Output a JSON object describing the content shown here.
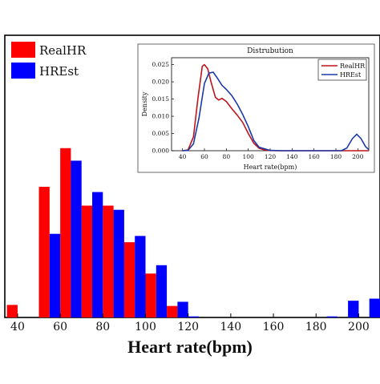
{
  "chart_data": [
    {
      "type": "bar",
      "xlabel": "Heart rate(bpm)",
      "x_ticks": [
        40,
        60,
        80,
        100,
        120,
        140,
        160,
        180,
        200
      ],
      "xlim": [
        34,
        210
      ],
      "ylim": [
        0,
        0.027
      ],
      "legend_placement": "top-left",
      "bin_width": 5,
      "series": [
        {
          "name": "RealHR",
          "color": "#ff0000",
          "values": [
            [
              40,
              0.0012
            ],
            [
              55,
              0.0125
            ],
            [
              65,
              0.0162
            ],
            [
              75,
              0.0107
            ],
            [
              85,
              0.0107
            ],
            [
              95,
              0.0072
            ],
            [
              105,
              0.0042
            ],
            [
              115,
              0.0011
            ],
            [
              120,
              0.0002
            ]
          ]
        },
        {
          "name": "HREst",
          "color": "#0000ff",
          "values": [
            [
              55,
              0.008
            ],
            [
              65,
              0.015
            ],
            [
              75,
              0.012
            ],
            [
              85,
              0.0103
            ],
            [
              95,
              0.0078
            ],
            [
              105,
              0.005
            ],
            [
              115,
              0.0015
            ],
            [
              120,
              0.0001
            ],
            [
              185,
              0.0001
            ],
            [
              195,
              0.0016
            ],
            [
              205,
              0.0018
            ]
          ]
        }
      ]
    },
    {
      "type": "line",
      "title": "Distrubution",
      "xlabel": "Heart rate(bpm)",
      "ylabel": "Density",
      "x_ticks": [
        40,
        60,
        80,
        100,
        120,
        140,
        160,
        180,
        200
      ],
      "y_ticks": [
        "0.000",
        "0.005",
        "0.010",
        "0.015",
        "0.020",
        "0.025"
      ],
      "xlim": [
        30,
        210
      ],
      "ylim": [
        0,
        0.027
      ],
      "legend_placement": "top-right",
      "series": [
        {
          "name": "RealHR",
          "color": "#c0141c",
          "points": [
            [
              40,
              0
            ],
            [
              45,
              0.0002
            ],
            [
              50,
              0.004
            ],
            [
              54,
              0.015
            ],
            [
              58,
              0.0245
            ],
            [
              60,
              0.025
            ],
            [
              63,
              0.0238
            ],
            [
              66,
              0.02
            ],
            [
              70,
              0.0155
            ],
            [
              73,
              0.0147
            ],
            [
              76,
              0.0152
            ],
            [
              80,
              0.0143
            ],
            [
              85,
              0.0122
            ],
            [
              90,
              0.0103
            ],
            [
              95,
              0.0082
            ],
            [
              100,
              0.005
            ],
            [
              105,
              0.0022
            ],
            [
              110,
              0.0007
            ],
            [
              115,
              0.0002
            ],
            [
              120,
              5e-05
            ],
            [
              130,
              0
            ],
            [
              185,
              0
            ],
            [
              210,
              0
            ]
          ]
        },
        {
          "name": "HREst",
          "color": "#1a3aa8",
          "points": [
            [
              40,
              0
            ],
            [
              45,
              0.0001
            ],
            [
              50,
              0.002
            ],
            [
              55,
              0.0095
            ],
            [
              60,
              0.0195
            ],
            [
              64,
              0.0225
            ],
            [
              68,
              0.0228
            ],
            [
              72,
              0.021
            ],
            [
              76,
              0.019
            ],
            [
              80,
              0.0178
            ],
            [
              85,
              0.016
            ],
            [
              90,
              0.0135
            ],
            [
              95,
              0.0105
            ],
            [
              100,
              0.007
            ],
            [
              105,
              0.003
            ],
            [
              110,
              0.001
            ],
            [
              120,
              0.0001
            ],
            [
              130,
              0
            ],
            [
              185,
              0
            ],
            [
              190,
              0.0008
            ],
            [
              195,
              0.0035
            ],
            [
              199,
              0.0048
            ],
            [
              203,
              0.0035
            ],
            [
              207,
              0.0012
            ],
            [
              210,
              0.0003
            ]
          ]
        }
      ]
    }
  ]
}
